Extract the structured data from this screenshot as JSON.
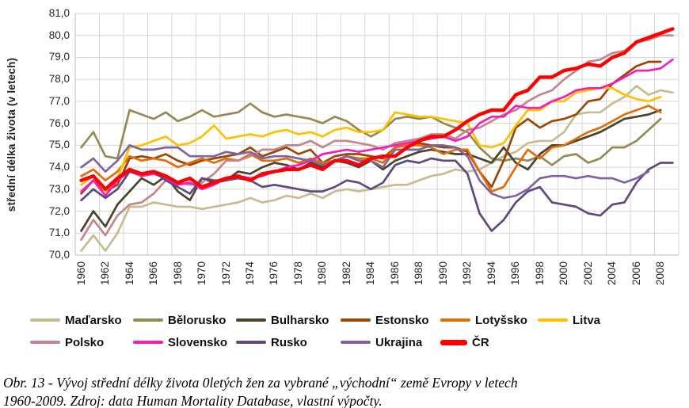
{
  "figure": {
    "caption_line1": "Obr. 13 - Vývoj střední délky života 0letých žen za vybrané „východní“ země Evropy v letech",
    "caption_line2": "1960-2009. Zdroj: data Human Mortality Database, vlastní výpočty."
  },
  "chart_data": {
    "type": "line",
    "title": "",
    "xlabel": "",
    "ylabel": "střední délka života (v letech)",
    "ylim": [
      70.0,
      81.0
    ],
    "ytick_step": 1.0,
    "number_format": "comma-decimal",
    "grid": true,
    "legend_position": "bottom",
    "years": [
      1960,
      1961,
      1962,
      1963,
      1964,
      1965,
      1966,
      1967,
      1968,
      1969,
      1970,
      1971,
      1972,
      1973,
      1974,
      1975,
      1976,
      1977,
      1978,
      1979,
      1980,
      1981,
      1982,
      1983,
      1984,
      1985,
      1986,
      1987,
      1988,
      1989,
      1990,
      1991,
      1992,
      1993,
      1994,
      1995,
      1996,
      1997,
      1998,
      1999,
      2000,
      2001,
      2002,
      2003,
      2004,
      2005,
      2006,
      2007,
      2008,
      2009
    ],
    "xticks": [
      1960,
      1962,
      1964,
      1966,
      1968,
      1970,
      1972,
      1974,
      1976,
      1978,
      1980,
      1982,
      1984,
      1986,
      1988,
      1990,
      1992,
      1994,
      1996,
      1998,
      2000,
      2002,
      2004,
      2006,
      2008
    ],
    "series": [
      {
        "name": "Maďarsko",
        "color": "#c6bd8f",
        "thick": false,
        "values": [
          70.2,
          70.9,
          70.2,
          71.0,
          72.2,
          72.2,
          72.4,
          72.3,
          72.2,
          72.2,
          72.1,
          72.2,
          72.3,
          72.4,
          72.6,
          72.4,
          72.5,
          72.7,
          72.6,
          72.8,
          72.6,
          72.9,
          73.0,
          72.9,
          73.0,
          73.1,
          73.2,
          73.2,
          73.4,
          73.6,
          73.7,
          73.9,
          73.8,
          73.9,
          74.2,
          74.5,
          74.7,
          75.1,
          75.2,
          75.2,
          75.6,
          76.4,
          76.5,
          76.5,
          76.9,
          77.2,
          77.7,
          77.3,
          77.5,
          77.4
        ]
      },
      {
        "name": "Bělorusko",
        "color": "#948a54",
        "thick": false,
        "values": [
          74.9,
          75.6,
          74.5,
          74.4,
          76.6,
          76.4,
          76.2,
          76.5,
          76.1,
          76.3,
          76.6,
          76.3,
          76.4,
          76.5,
          76.9,
          76.5,
          76.3,
          76.4,
          76.3,
          76.2,
          76.0,
          76.3,
          76.1,
          75.7,
          75.4,
          75.7,
          76.2,
          76.3,
          76.2,
          76.3,
          76.0,
          75.8,
          75.6,
          74.9,
          74.4,
          74.3,
          74.4,
          74.3,
          74.5,
          74.1,
          74.5,
          74.6,
          74.2,
          74.4,
          74.9,
          74.9,
          75.2,
          75.7,
          76.2,
          null
        ]
      },
      {
        "name": "Bulharsko",
        "color": "#4a452a",
        "thick": false,
        "values": [
          71.1,
          72.0,
          71.3,
          72.3,
          72.9,
          73.5,
          73.2,
          73.6,
          72.9,
          72.5,
          73.5,
          73.3,
          73.4,
          73.8,
          73.7,
          74.0,
          74.2,
          74.1,
          73.9,
          74.2,
          74.0,
          74.3,
          74.2,
          74.0,
          74.3,
          73.9,
          74.3,
          74.5,
          74.7,
          74.8,
          74.7,
          74.6,
          74.6,
          74.4,
          74.2,
          74.9,
          74.2,
          73.9,
          74.6,
          75.0,
          75.0,
          75.2,
          75.4,
          75.6,
          75.9,
          76.2,
          76.3,
          76.4,
          76.6,
          null
        ]
      },
      {
        "name": "Estonsko",
        "color": "#974706",
        "thick": false,
        "values": [
          72.8,
          73.4,
          72.9,
          73.2,
          74.4,
          74.5,
          74.4,
          74.6,
          74.3,
          74.1,
          74.3,
          74.4,
          74.5,
          74.6,
          74.9,
          74.5,
          74.7,
          74.9,
          74.6,
          74.8,
          74.2,
          74.5,
          74.6,
          74.6,
          74.5,
          74.4,
          74.9,
          75.0,
          75.1,
          75.0,
          74.9,
          74.9,
          74.7,
          73.8,
          73.1,
          74.3,
          75.8,
          76.2,
          75.8,
          76.1,
          76.2,
          76.4,
          77.0,
          77.1,
          77.8,
          78.2,
          78.6,
          78.8,
          78.8,
          null
        ]
      },
      {
        "name": "Lotyšsko",
        "color": "#e36c0a",
        "thick": false,
        "values": [
          73.6,
          73.9,
          73.4,
          73.8,
          74.5,
          74.3,
          74.4,
          74.3,
          74.0,
          74.2,
          74.4,
          74.2,
          74.4,
          74.3,
          74.6,
          74.3,
          74.3,
          74.4,
          74.2,
          74.4,
          74.2,
          74.3,
          74.5,
          74.4,
          74.4,
          74.2,
          74.9,
          75.0,
          75.0,
          74.9,
          74.6,
          74.8,
          74.8,
          73.8,
          72.9,
          73.1,
          74.0,
          74.8,
          74.4,
          74.9,
          75.0,
          75.3,
          75.6,
          75.8,
          76.1,
          76.4,
          76.6,
          76.8,
          76.5,
          null
        ]
      },
      {
        "name": "Litva",
        "color": "#ffc000",
        "thick": false,
        "values": [
          73.2,
          73.6,
          72.9,
          73.5,
          74.9,
          75.0,
          75.2,
          75.4,
          75.0,
          75.1,
          75.4,
          75.9,
          75.3,
          75.4,
          75.5,
          75.4,
          75.6,
          75.7,
          75.5,
          75.6,
          75.4,
          75.7,
          75.8,
          75.6,
          75.6,
          75.7,
          76.5,
          76.4,
          76.3,
          76.3,
          76.2,
          76.1,
          76.0,
          75.0,
          74.9,
          75.1,
          75.9,
          76.6,
          76.6,
          77.0,
          77.0,
          77.4,
          77.5,
          77.6,
          77.6,
          77.3,
          77.1,
          77.0,
          77.2,
          null
        ]
      },
      {
        "name": "Polsko",
        "color": "#c4858c",
        "thick": false,
        "values": [
          70.7,
          71.6,
          70.9,
          71.8,
          72.3,
          72.4,
          72.8,
          73.4,
          73.3,
          73.2,
          73.3,
          73.7,
          74.3,
          74.3,
          74.5,
          74.8,
          74.8,
          75.0,
          75.0,
          75.2,
          74.9,
          75.2,
          75.2,
          75.1,
          75.0,
          74.8,
          75.1,
          75.2,
          75.3,
          75.5,
          75.5,
          75.3,
          75.7,
          75.8,
          76.1,
          76.4,
          76.6,
          77.0,
          77.3,
          77.5,
          78.0,
          78.4,
          78.8,
          78.9,
          79.2,
          79.3,
          79.7,
          79.8,
          80.0,
          80.0
        ]
      },
      {
        "name": "Slovensko",
        "color": "#f41cba",
        "thick": false,
        "values": [
          72.9,
          73.4,
          72.7,
          73.4,
          73.8,
          73.6,
          73.7,
          73.5,
          73.2,
          73.3,
          73.0,
          73.2,
          73.5,
          73.6,
          73.5,
          73.6,
          73.8,
          74.0,
          74.1,
          74.3,
          74.6,
          74.7,
          74.8,
          74.7,
          74.8,
          74.9,
          75.0,
          75.1,
          75.2,
          75.3,
          75.4,
          75.2,
          75.4,
          76.0,
          76.3,
          76.3,
          76.8,
          76.7,
          76.7,
          77.0,
          77.2,
          77.5,
          77.6,
          77.6,
          77.8,
          78.1,
          78.4,
          78.4,
          78.5,
          78.9
        ]
      },
      {
        "name": "Rusko",
        "color": "#604a7b",
        "thick": false,
        "values": [
          72.5,
          73.0,
          72.6,
          73.0,
          73.8,
          73.7,
          73.8,
          73.4,
          73.1,
          72.8,
          73.5,
          73.4,
          73.4,
          73.5,
          73.4,
          73.1,
          73.2,
          73.1,
          73.0,
          72.9,
          72.9,
          73.1,
          73.4,
          73.3,
          73.0,
          73.3,
          74.1,
          74.3,
          74.2,
          74.4,
          74.3,
          74.3,
          73.7,
          71.9,
          71.1,
          71.6,
          72.4,
          72.9,
          73.1,
          72.4,
          72.3,
          72.2,
          71.9,
          71.8,
          72.3,
          72.4,
          73.3,
          73.9,
          74.2,
          74.2
        ]
      },
      {
        "name": "Ukrajina",
        "color": "#8064a2",
        "thick": false,
        "values": [
          74.0,
          74.4,
          73.8,
          74.3,
          75.0,
          74.8,
          74.8,
          74.9,
          74.9,
          74.5,
          74.5,
          74.5,
          74.7,
          74.6,
          74.7,
          74.4,
          74.5,
          74.5,
          74.4,
          74.3,
          74.1,
          74.3,
          74.5,
          74.3,
          74.3,
          74.0,
          74.8,
          74.8,
          74.8,
          75.0,
          75.0,
          74.9,
          74.5,
          73.4,
          72.8,
          72.6,
          72.7,
          73.0,
          73.5,
          73.6,
          73.6,
          73.5,
          73.6,
          73.5,
          73.5,
          73.3,
          73.5,
          73.8,
          null,
          null
        ]
      },
      {
        "name": "ČR",
        "color": "#ff0000",
        "thick": true,
        "values": [
          73.4,
          73.6,
          73.0,
          73.5,
          73.9,
          73.7,
          73.8,
          73.6,
          73.3,
          73.5,
          73.1,
          73.3,
          73.5,
          73.6,
          73.4,
          73.7,
          73.8,
          73.9,
          73.9,
          74.1,
          73.9,
          74.3,
          74.3,
          74.1,
          74.4,
          74.5,
          74.5,
          74.9,
          75.2,
          75.4,
          75.4,
          75.7,
          76.1,
          76.4,
          76.6,
          76.6,
          77.3,
          77.5,
          78.1,
          78.1,
          78.4,
          78.5,
          78.7,
          78.6,
          79.0,
          79.2,
          79.7,
          79.9,
          80.1,
          80.3
        ]
      }
    ]
  }
}
